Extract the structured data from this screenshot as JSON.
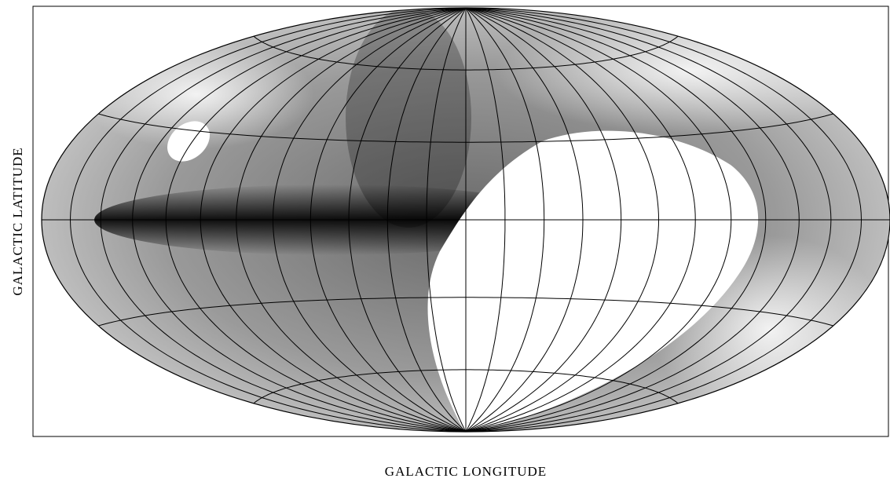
{
  "map": {
    "y_axis_label": "GALACTIC LATITUDE",
    "x_axis_label": "GALACTIC LONGITUDE"
  }
}
